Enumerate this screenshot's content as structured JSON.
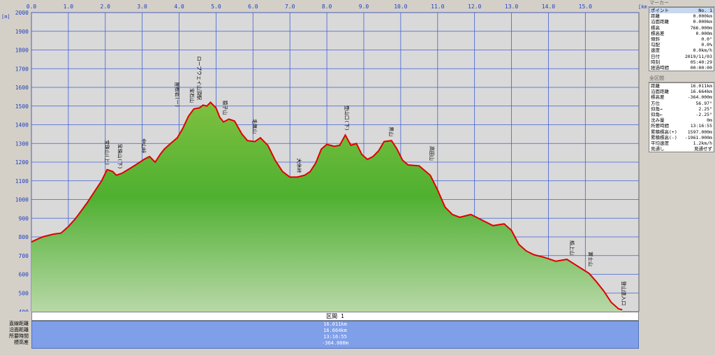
{
  "chart_data": {
    "type": "area",
    "x_unit": "[km]",
    "y_unit": "[m]",
    "xlim": [
      0,
      16.0
    ],
    "ylim": [
      400,
      2000
    ],
    "x_ticks": [
      "0.0",
      "1.0",
      "2.0",
      "3.0",
      "4.0",
      "5.0",
      "6.0",
      "7.0",
      "8.0",
      "9.0",
      "10.0",
      "11.0",
      "12.0",
      "13.0",
      "14.0",
      "15.0"
    ],
    "y_ticks": [
      "2000",
      "1900",
      "1800",
      "1700",
      "1600",
      "1500",
      "1400",
      "1300",
      "1200",
      "1100",
      "1000",
      "900",
      "800",
      "700",
      "600",
      "500",
      "400"
    ],
    "x": [
      0.0,
      0.05,
      0.3,
      0.6,
      0.8,
      1.0,
      1.2,
      1.5,
      1.7,
      1.9,
      2.05,
      2.2,
      2.3,
      2.45,
      2.7,
      2.9,
      3.05,
      3.2,
      3.35,
      3.5,
      3.6,
      3.8,
      3.95,
      4.1,
      4.25,
      4.4,
      4.55,
      4.65,
      4.75,
      4.85,
      5.0,
      5.1,
      5.2,
      5.35,
      5.5,
      5.7,
      5.85,
      6.05,
      6.2,
      6.4,
      6.6,
      6.8,
      7.0,
      7.2,
      7.4,
      7.55,
      7.7,
      7.85,
      8.0,
      8.2,
      8.35,
      8.5,
      8.65,
      8.8,
      8.95,
      9.1,
      9.25,
      9.4,
      9.55,
      9.75,
      9.9,
      10.05,
      10.2,
      10.5,
      10.8,
      11.0,
      11.2,
      11.4,
      11.6,
      11.9,
      12.2,
      12.5,
      12.8,
      13.0,
      13.2,
      13.4,
      13.6,
      13.9,
      14.2,
      14.5,
      14.7,
      14.9,
      15.1,
      15.3,
      15.5,
      15.7,
      15.9,
      16.0
    ],
    "y": [
      772,
      778,
      800,
      815,
      820,
      855,
      900,
      980,
      1040,
      1100,
      1160,
      1150,
      1130,
      1140,
      1170,
      1195,
      1215,
      1230,
      1200,
      1245,
      1270,
      1305,
      1330,
      1380,
      1445,
      1485,
      1490,
      1505,
      1500,
      1520,
      1490,
      1440,
      1415,
      1430,
      1420,
      1350,
      1315,
      1310,
      1330,
      1290,
      1210,
      1150,
      1120,
      1120,
      1130,
      1150,
      1195,
      1270,
      1295,
      1285,
      1290,
      1345,
      1290,
      1300,
      1240,
      1215,
      1230,
      1260,
      1310,
      1315,
      1270,
      1210,
      1185,
      1180,
      1130,
      1050,
      960,
      920,
      905,
      920,
      890,
      860,
      870,
      835,
      760,
      725,
      705,
      690,
      670,
      680,
      655,
      630,
      605,
      560,
      510,
      450,
      415,
      410
    ],
    "peaks": [
      {
        "x": 2.0,
        "y": 1160,
        "label": "宝珠山(上)"
      },
      {
        "x": 2.35,
        "y": 1140,
        "label": "宝珠山(下)"
      },
      {
        "x": 3.0,
        "y": 1225,
        "label": "中山峠"
      },
      {
        "x": 3.9,
        "y": 1470,
        "label": "屋根岩(一)"
      },
      {
        "x": 4.3,
        "y": 1495,
        "label": "宝石山"
      },
      {
        "x": 4.5,
        "y": 1510,
        "label": "ロープウェイ山頂駅"
      },
      {
        "x": 5.2,
        "y": 1430,
        "label": "猿子山"
      },
      {
        "x": 6.0,
        "y": 1330,
        "label": "毛無山"
      },
      {
        "x": 7.2,
        "y": 1120,
        "label": "大休峠"
      },
      {
        "x": 8.5,
        "y": 1345,
        "label": "登山口(下)"
      },
      {
        "x": 9.7,
        "y": 1315,
        "label": "黒山"
      },
      {
        "x": 10.8,
        "y": 1185,
        "label": "高田山"
      },
      {
        "x": 14.6,
        "y": 680,
        "label": "船上山"
      },
      {
        "x": 15.1,
        "y": 620,
        "label": "富士山"
      },
      {
        "x": 16.0,
        "y": 410,
        "label": "登山道入口"
      }
    ]
  },
  "section_bar": {
    "label": "区間 1"
  },
  "summary": {
    "labels": [
      "直線距離",
      "沿面距離",
      "所要時間",
      "標高差"
    ],
    "values": [
      "16.011km",
      "16.664km",
      "13:16:55",
      "-364.000m"
    ]
  },
  "right_panel": {
    "marker_title": "マーカー",
    "marker_rows": [
      {
        "k": "ポイント",
        "v": "No. 1"
      },
      {
        "k": "距離",
        "v": "0.000km"
      },
      {
        "k": "沿面距離",
        "v": "0.000km"
      },
      {
        "k": "標高",
        "v": "766.000m"
      },
      {
        "k": "標高差",
        "v": "0.000m"
      },
      {
        "k": "傾斜",
        "v": "0.0°"
      },
      {
        "k": "勾配",
        "v": "0.0%"
      },
      {
        "k": "速度",
        "v": "0.0km/h"
      },
      {
        "k": "日付",
        "v": "2019/11/03"
      },
      {
        "k": "時刻",
        "v": "05:40:29"
      },
      {
        "k": "経過時間",
        "v": "00:00:00"
      }
    ],
    "section_title": "全区間",
    "section_rows": [
      {
        "k": "距離",
        "v": "16.011km"
      },
      {
        "k": "沿面距離",
        "v": "16.664km"
      },
      {
        "k": "標高差",
        "v": "-364.000m"
      },
      {
        "k": "方位",
        "v": "56.97°"
      },
      {
        "k": "仰角→",
        "v": "2.25°"
      },
      {
        "k": "仰角←",
        "v": "-2.25°"
      },
      {
        "k": "沈み量",
        "v": "0m"
      },
      {
        "k": "所要時間",
        "v": "13:16:55"
      },
      {
        "k": "累積標高(+)",
        "v": "1597.000m"
      },
      {
        "k": "累積標高(-)",
        "v": "-1961.000m"
      },
      {
        "k": "平均速度",
        "v": "1.2km/h"
      },
      {
        "k": "見通し",
        "v": "見通せず"
      }
    ]
  },
  "colors": {
    "plot_bg": "#d8d8d8",
    "grid": "#4060d8",
    "line": "#e00000",
    "fill_top": "#66b533",
    "fill_bottom": "#c8e0b8",
    "summary_bg": "#7f9fe8"
  }
}
